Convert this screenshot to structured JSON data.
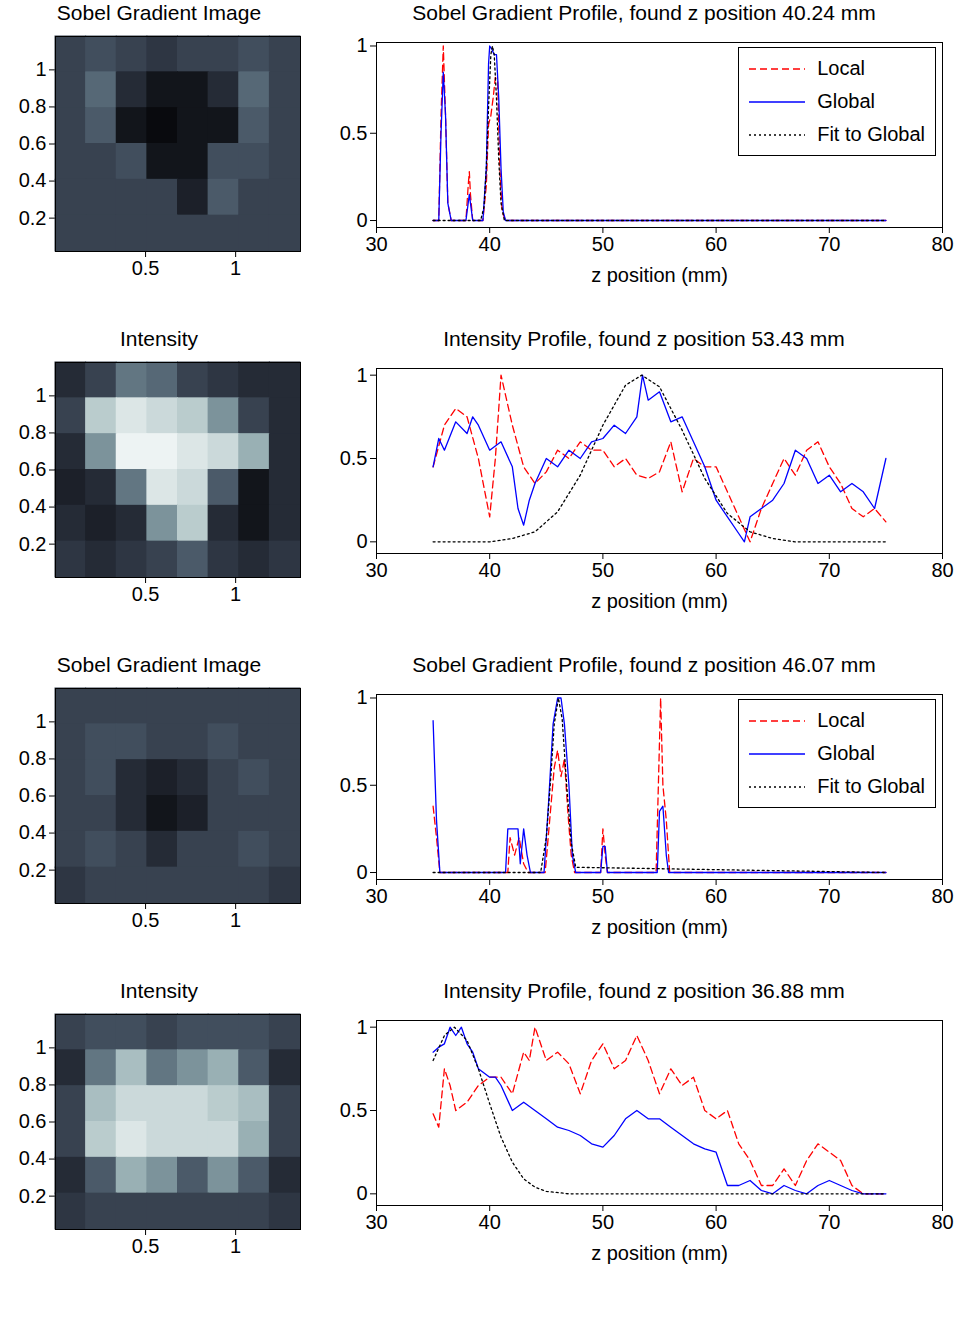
{
  "chart_data": [
    {
      "type": "image",
      "title": "Sobel Gradient Image",
      "xlim": [
        0,
        1.36
      ],
      "ylim": [
        0.02,
        1.18
      ],
      "xticks": [
        0.5,
        1
      ],
      "yticks": [
        0.2,
        0.4,
        0.6,
        0.8,
        1
      ],
      "cells": [
        [
          0.3,
          0.35,
          0.3,
          0.25,
          0.3,
          0.3,
          0.35,
          0.3
        ],
        [
          0.3,
          0.45,
          0.2,
          0.1,
          0.1,
          0.2,
          0.45,
          0.3
        ],
        [
          0.3,
          0.4,
          0.1,
          0.05,
          0.1,
          0.1,
          0.4,
          0.3
        ],
        [
          0.3,
          0.3,
          0.35,
          0.1,
          0.1,
          0.35,
          0.35,
          0.3
        ],
        [
          0.3,
          0.3,
          0.3,
          0.3,
          0.15,
          0.4,
          0.3,
          0.3
        ],
        [
          0.3,
          0.3,
          0.3,
          0.3,
          0.3,
          0.3,
          0.3,
          0.3
        ]
      ]
    },
    {
      "type": "line",
      "title": "Sobel Gradient Profile, found z position 40.24 mm",
      "x_label": "z position (mm)",
      "xlim": [
        30,
        80
      ],
      "ylim": [
        -0.04,
        1.02
      ],
      "xticks": [
        30,
        40,
        50,
        60,
        70,
        80
      ],
      "yticks": [
        0,
        0.5,
        1
      ],
      "legend": "upper right",
      "series": [
        {
          "name": "Local",
          "color": "#ff0000",
          "line_style": "dashed",
          "x": [
            35,
            35.5,
            35.7,
            35.9,
            36.1,
            36.3,
            36.6,
            37.9,
            38.1,
            38.2,
            38.3,
            38.5,
            39.4,
            39.7,
            39.9,
            40.1,
            40.3,
            40.5,
            40.7,
            40.9,
            41.1,
            41.4,
            75
          ],
          "values": [
            0,
            0,
            0.6,
            1,
            0.6,
            0.1,
            0,
            0,
            0.2,
            0.28,
            0.15,
            0,
            0,
            0.2,
            0.55,
            0.6,
            0.7,
            0.82,
            0.8,
            0.3,
            0.05,
            0,
            0
          ]
        },
        {
          "name": "Global",
          "color": "#0000ff",
          "line_style": "solid",
          "x": [
            35,
            35.5,
            35.7,
            35.9,
            36.1,
            36.3,
            36.6,
            37.9,
            38.1,
            38.2,
            38.3,
            38.5,
            39.4,
            39.7,
            39.9,
            40.0,
            40.2,
            40.4,
            40.6,
            40.8,
            41.0,
            41.2,
            41.4,
            75
          ],
          "values": [
            0,
            0,
            0.5,
            0.85,
            0.6,
            0.1,
            0,
            0,
            0.1,
            0.15,
            0.1,
            0,
            0,
            0.3,
            0.9,
            1,
            0.98,
            0.95,
            0.95,
            0.7,
            0.3,
            0.05,
            0,
            0
          ]
        },
        {
          "name": "Fit to Global",
          "color": "#000000",
          "line_style": "dotted",
          "x": [
            35,
            39.2,
            39.5,
            39.7,
            39.9,
            40.1,
            40.24,
            40.4,
            40.6,
            40.8,
            41.0,
            41.3,
            75
          ],
          "values": [
            0,
            0,
            0.08,
            0.3,
            0.65,
            0.95,
            1,
            0.95,
            0.7,
            0.35,
            0.1,
            0,
            0
          ]
        }
      ]
    },
    {
      "type": "image",
      "title": "Intensity",
      "xlim": [
        0,
        1.36
      ],
      "ylim": [
        0.02,
        1.18
      ],
      "xticks": [
        0.5,
        1
      ],
      "yticks": [
        0.2,
        0.4,
        0.6,
        0.8,
        1
      ],
      "cells": [
        [
          0.2,
          0.3,
          0.5,
          0.45,
          0.3,
          0.25,
          0.2,
          0.2
        ],
        [
          0.3,
          0.8,
          0.9,
          0.85,
          0.8,
          0.6,
          0.3,
          0.2
        ],
        [
          0.2,
          0.6,
          0.95,
          0.95,
          0.9,
          0.85,
          0.7,
          0.2
        ],
        [
          0.15,
          0.2,
          0.5,
          0.9,
          0.85,
          0.4,
          0.1,
          0.2
        ],
        [
          0.2,
          0.15,
          0.2,
          0.6,
          0.8,
          0.2,
          0.1,
          0.2
        ],
        [
          0.25,
          0.2,
          0.25,
          0.3,
          0.4,
          0.25,
          0.2,
          0.25
        ]
      ]
    },
    {
      "type": "line",
      "title": "Intensity Profile, found z position 53.43 mm",
      "x_label": "z position (mm)",
      "xlim": [
        30,
        80
      ],
      "ylim": [
        -0.07,
        1.04
      ],
      "xticks": [
        30,
        40,
        50,
        60,
        70,
        80
      ],
      "yticks": [
        0,
        0.5,
        1
      ],
      "series": [
        {
          "name": "Local",
          "color": "#ff0000",
          "line_style": "dashed",
          "x": [
            35,
            36,
            37,
            38,
            39,
            40,
            40.5,
            41,
            42,
            43,
            44,
            45,
            46,
            47,
            48,
            49,
            50,
            51,
            52,
            53,
            54,
            55,
            56,
            57,
            58,
            59,
            60,
            61,
            62,
            63,
            64,
            65,
            66,
            67,
            68,
            69,
            70,
            71,
            72,
            73,
            74,
            75
          ],
          "values": [
            0.45,
            0.7,
            0.8,
            0.75,
            0.5,
            0.15,
            0.5,
            1,
            0.7,
            0.45,
            0.35,
            0.42,
            0.55,
            0.5,
            0.6,
            0.55,
            0.55,
            0.45,
            0.5,
            0.4,
            0.38,
            0.42,
            0.6,
            0.3,
            0.5,
            0.45,
            0.45,
            0.3,
            0.15,
            0,
            0.2,
            0.35,
            0.5,
            0.4,
            0.55,
            0.6,
            0.45,
            0.35,
            0.2,
            0.15,
            0.2,
            0.12
          ]
        },
        {
          "name": "Global",
          "color": "#0000ff",
          "line_style": "solid",
          "x": [
            35,
            35.5,
            36,
            37,
            38,
            38.5,
            39,
            40,
            41,
            42,
            42.5,
            43,
            43.5,
            44,
            45,
            46,
            47,
            48,
            49,
            50,
            51,
            52,
            53,
            53.5,
            54,
            55,
            56,
            57,
            58,
            59,
            60,
            61,
            62,
            62.5,
            63,
            64,
            65,
            66,
            67,
            68,
            69,
            70,
            71,
            72,
            73,
            74,
            75
          ],
          "values": [
            0.45,
            0.62,
            0.55,
            0.72,
            0.65,
            0.75,
            0.7,
            0.55,
            0.6,
            0.45,
            0.2,
            0.1,
            0.25,
            0.35,
            0.5,
            0.45,
            0.55,
            0.5,
            0.6,
            0.62,
            0.7,
            0.65,
            0.75,
            1,
            0.85,
            0.9,
            0.72,
            0.75,
            0.6,
            0.45,
            0.25,
            0.15,
            0.05,
            0,
            0.15,
            0.2,
            0.25,
            0.35,
            0.55,
            0.5,
            0.35,
            0.4,
            0.3,
            0.35,
            0.3,
            0.2,
            0.5
          ]
        },
        {
          "name": "Fit to Global",
          "color": "#000000",
          "line_style": "dotted",
          "x": [
            35,
            40,
            42,
            44,
            46,
            48,
            50,
            52,
            53.43,
            55,
            57,
            59,
            61,
            63,
            65,
            67,
            75
          ],
          "values": [
            0,
            0,
            0.02,
            0.06,
            0.18,
            0.4,
            0.7,
            0.94,
            1,
            0.93,
            0.67,
            0.38,
            0.17,
            0.06,
            0.02,
            0,
            0
          ]
        }
      ]
    },
    {
      "type": "image",
      "title": "Sobel Gradient Image",
      "xlim": [
        0,
        1.36
      ],
      "ylim": [
        0.02,
        1.18
      ],
      "xticks": [
        0.5,
        1
      ],
      "yticks": [
        0.2,
        0.4,
        0.6,
        0.8,
        1
      ],
      "cells": [
        [
          0.3,
          0.3,
          0.3,
          0.3,
          0.3,
          0.3,
          0.3,
          0.3
        ],
        [
          0.3,
          0.35,
          0.35,
          0.3,
          0.3,
          0.35,
          0.3,
          0.3
        ],
        [
          0.3,
          0.35,
          0.2,
          0.15,
          0.2,
          0.3,
          0.35,
          0.3
        ],
        [
          0.3,
          0.3,
          0.2,
          0.1,
          0.15,
          0.3,
          0.3,
          0.3
        ],
        [
          0.3,
          0.35,
          0.3,
          0.2,
          0.3,
          0.3,
          0.35,
          0.3
        ],
        [
          0.25,
          0.3,
          0.3,
          0.3,
          0.3,
          0.3,
          0.3,
          0.25
        ]
      ]
    },
    {
      "type": "line",
      "title": "Sobel Gradient Profile, found z position 46.07 mm",
      "x_label": "z position (mm)",
      "xlim": [
        30,
        80
      ],
      "ylim": [
        -0.04,
        1.02
      ],
      "xticks": [
        30,
        40,
        50,
        60,
        70,
        80
      ],
      "yticks": [
        0,
        0.5,
        1
      ],
      "legend": "upper right",
      "series": [
        {
          "name": "Local",
          "color": "#ff0000",
          "line_style": "dashed",
          "x": [
            35,
            35.3,
            35.6,
            41.6,
            41.8,
            42.2,
            42.6,
            43,
            43.4,
            44.9,
            45.3,
            45.7,
            46,
            46.3,
            46.6,
            46.9,
            47.2,
            47.5,
            49.8,
            50,
            50.2,
            50.4,
            54.7,
            54.9,
            55.1,
            55.3,
            55.6,
            55.9,
            75
          ],
          "values": [
            0.38,
            0.2,
            0,
            0,
            0.2,
            0.1,
            0.2,
            0.05,
            0,
            0,
            0.3,
            0.6,
            0.7,
            0.55,
            0.65,
            0.35,
            0.1,
            0,
            0,
            0.25,
            0.1,
            0,
            0,
            0.5,
            1,
            0.5,
            0.3,
            0,
            0
          ]
        },
        {
          "name": "Global",
          "color": "#0000ff",
          "line_style": "solid",
          "x": [
            35,
            35.3,
            35.6,
            41.4,
            41.6,
            42.5,
            42.7,
            43,
            43.3,
            43.6,
            44.8,
            45.2,
            45.6,
            46,
            46.3,
            46.6,
            47,
            47.3,
            47.6,
            49.8,
            50,
            50.2,
            50.4,
            54.8,
            55,
            55.3,
            55.6,
            55.8,
            75
          ],
          "values": [
            0.87,
            0.3,
            0,
            0,
            0.25,
            0.25,
            0.05,
            0.25,
            0.1,
            0,
            0,
            0.4,
            0.85,
            1,
            1,
            0.85,
            0.5,
            0.1,
            0,
            0,
            0.15,
            0.15,
            0,
            0,
            0.35,
            0.38,
            0.1,
            0,
            0
          ]
        },
        {
          "name": "Fit to Global",
          "color": "#000000",
          "line_style": "dotted",
          "x": [
            35,
            44.5,
            45,
            45.4,
            45.7,
            46.07,
            46.4,
            46.8,
            47.2,
            47.6,
            75
          ],
          "values": [
            0,
            0,
            0.2,
            0.55,
            0.85,
            1,
            0.88,
            0.5,
            0.17,
            0.03,
            0
          ]
        }
      ]
    },
    {
      "type": "image",
      "title": "Intensity",
      "xlim": [
        0,
        1.36
      ],
      "ylim": [
        0.02,
        1.18
      ],
      "xticks": [
        0.5,
        1
      ],
      "yticks": [
        0.2,
        0.4,
        0.6,
        0.8,
        1
      ],
      "cells": [
        [
          0.3,
          0.35,
          0.35,
          0.3,
          0.35,
          0.35,
          0.35,
          0.3
        ],
        [
          0.2,
          0.5,
          0.75,
          0.5,
          0.6,
          0.7,
          0.4,
          0.2
        ],
        [
          0.3,
          0.75,
          0.85,
          0.85,
          0.85,
          0.8,
          0.75,
          0.3
        ],
        [
          0.3,
          0.8,
          0.9,
          0.85,
          0.85,
          0.85,
          0.7,
          0.3
        ],
        [
          0.2,
          0.4,
          0.7,
          0.6,
          0.4,
          0.6,
          0.4,
          0.2
        ],
        [
          0.25,
          0.3,
          0.3,
          0.3,
          0.3,
          0.3,
          0.3,
          0.25
        ]
      ]
    },
    {
      "type": "line",
      "title": "Intensity Profile, found z position 36.88 mm",
      "x_label": "z position (mm)",
      "xlim": [
        30,
        80
      ],
      "ylim": [
        -0.07,
        1.04
      ],
      "xticks": [
        30,
        40,
        50,
        60,
        70,
        80
      ],
      "yticks": [
        0,
        0.5,
        1
      ],
      "series": [
        {
          "name": "Local",
          "color": "#ff0000",
          "line_style": "dashed",
          "x": [
            35,
            35.5,
            36,
            36.5,
            37,
            38,
            39,
            40,
            41,
            42,
            43,
            43.5,
            44,
            45,
            46,
            47,
            48,
            49,
            50,
            51,
            52,
            53,
            54,
            55,
            56,
            57,
            58,
            59,
            60,
            61,
            62,
            63,
            64,
            65,
            66,
            67,
            68,
            69,
            70,
            71,
            72,
            73,
            75
          ],
          "values": [
            0.48,
            0.4,
            0.75,
            0.65,
            0.5,
            0.55,
            0.65,
            0.7,
            0.7,
            0.6,
            0.85,
            0.8,
            1,
            0.8,
            0.85,
            0.78,
            0.6,
            0.8,
            0.9,
            0.75,
            0.8,
            0.95,
            0.8,
            0.6,
            0.75,
            0.65,
            0.7,
            0.5,
            0.45,
            0.5,
            0.3,
            0.2,
            0.05,
            0.05,
            0.15,
            0.05,
            0.2,
            0.3,
            0.25,
            0.2,
            0.05,
            0,
            0
          ]
        },
        {
          "name": "Global",
          "color": "#0000ff",
          "line_style": "solid",
          "x": [
            35,
            35.5,
            36,
            36.5,
            37,
            37.5,
            38,
            38.5,
            39,
            40,
            40.5,
            41,
            42,
            43,
            44,
            45,
            46,
            47,
            48,
            49,
            50,
            51,
            52,
            53,
            54,
            55,
            56,
            57,
            58,
            59,
            60,
            61,
            62,
            63,
            64,
            65,
            66,
            67,
            68,
            69,
            70,
            71,
            72,
            73,
            75
          ],
          "values": [
            0.85,
            0.88,
            0.9,
            1,
            0.95,
            1,
            0.9,
            0.85,
            0.75,
            0.7,
            0.7,
            0.65,
            0.5,
            0.55,
            0.5,
            0.45,
            0.4,
            0.38,
            0.35,
            0.3,
            0.28,
            0.35,
            0.45,
            0.5,
            0.45,
            0.45,
            0.4,
            0.35,
            0.3,
            0.27,
            0.25,
            0.05,
            0.05,
            0.08,
            0.02,
            0,
            0.05,
            0.02,
            0,
            0.05,
            0.08,
            0.05,
            0.02,
            0,
            0
          ]
        },
        {
          "name": "Fit to Global",
          "color": "#000000",
          "line_style": "dotted",
          "x": [
            35,
            36,
            36.88,
            38,
            39,
            40,
            41,
            42,
            43,
            44,
            45,
            47,
            75
          ],
          "values": [
            0.8,
            0.95,
            1,
            0.92,
            0.75,
            0.54,
            0.34,
            0.19,
            0.09,
            0.04,
            0.015,
            0,
            0
          ]
        }
      ]
    }
  ]
}
